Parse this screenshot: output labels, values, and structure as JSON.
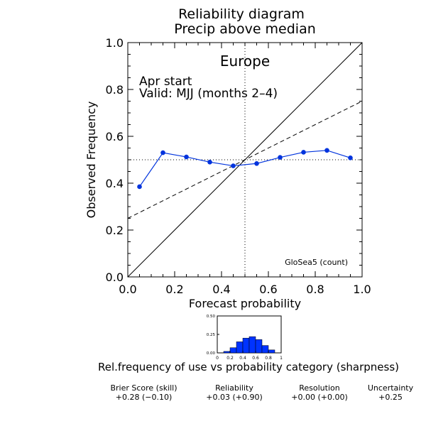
{
  "chart_data": [
    {
      "type": "line",
      "title": "Reliability diagram",
      "subtitle": "Precip above median",
      "region": "Europe",
      "start": "Apr start",
      "valid": "Valid: MJJ (months 2–4)",
      "model": "GloSea5 (count)",
      "xlabel": "Forecast probability",
      "ylabel": "Observed Frequency",
      "xlim": [
        0,
        1
      ],
      "ylim": [
        0,
        1
      ],
      "xticks": [
        "0.0",
        "0.2",
        "0.4",
        "0.6",
        "0.8",
        "1.0"
      ],
      "yticks": [
        "0.0",
        "0.2",
        "0.4",
        "0.6",
        "0.8",
        "1.0"
      ],
      "series": [
        {
          "x": [
            0.05,
            0.15,
            0.25,
            0.35,
            0.45,
            0.55,
            0.65,
            0.75,
            0.85,
            0.95
          ],
          "y": [
            0.385,
            0.53,
            0.512,
            0.49,
            0.474,
            0.484,
            0.51,
            0.532,
            0.54,
            0.508
          ],
          "color": "#0033dd"
        }
      ],
      "perfect_reliability": {
        "x": [
          0,
          1
        ],
        "y": [
          0,
          1
        ]
      },
      "no_skill_line": {
        "x": [
          0,
          1
        ],
        "y": [
          0.25,
          0.75
        ]
      },
      "climatology": {
        "x": 0.5,
        "y": 0.5
      }
    },
    {
      "type": "bar",
      "title": "Rel.frequency of use vs probability category (sharpness)",
      "categories": [
        0.05,
        0.15,
        0.25,
        0.35,
        0.45,
        0.55,
        0.65,
        0.75,
        0.85,
        0.95
      ],
      "values": [
        0.0,
        0.02,
        0.07,
        0.15,
        0.2,
        0.22,
        0.18,
        0.1,
        0.04,
        0.0
      ],
      "xlim": [
        0,
        1
      ],
      "ylim": [
        0,
        0.5
      ],
      "xticks": [
        "0",
        "0.2",
        "0.4",
        "0.6",
        "0.8",
        "1"
      ],
      "yticks": [
        "0.00",
        "0.25",
        "0.50"
      ],
      "color": "#0033ff"
    }
  ],
  "scores": [
    {
      "label": "Brier Score (skill)",
      "value": "+0.28  (−0.10)"
    },
    {
      "label": "Reliability",
      "value": "+0.03  (+0.90)"
    },
    {
      "label": "Resolution",
      "value": "+0.00  (+0.00)"
    },
    {
      "label": "Uncertainty",
      "value": "+0.25"
    }
  ]
}
